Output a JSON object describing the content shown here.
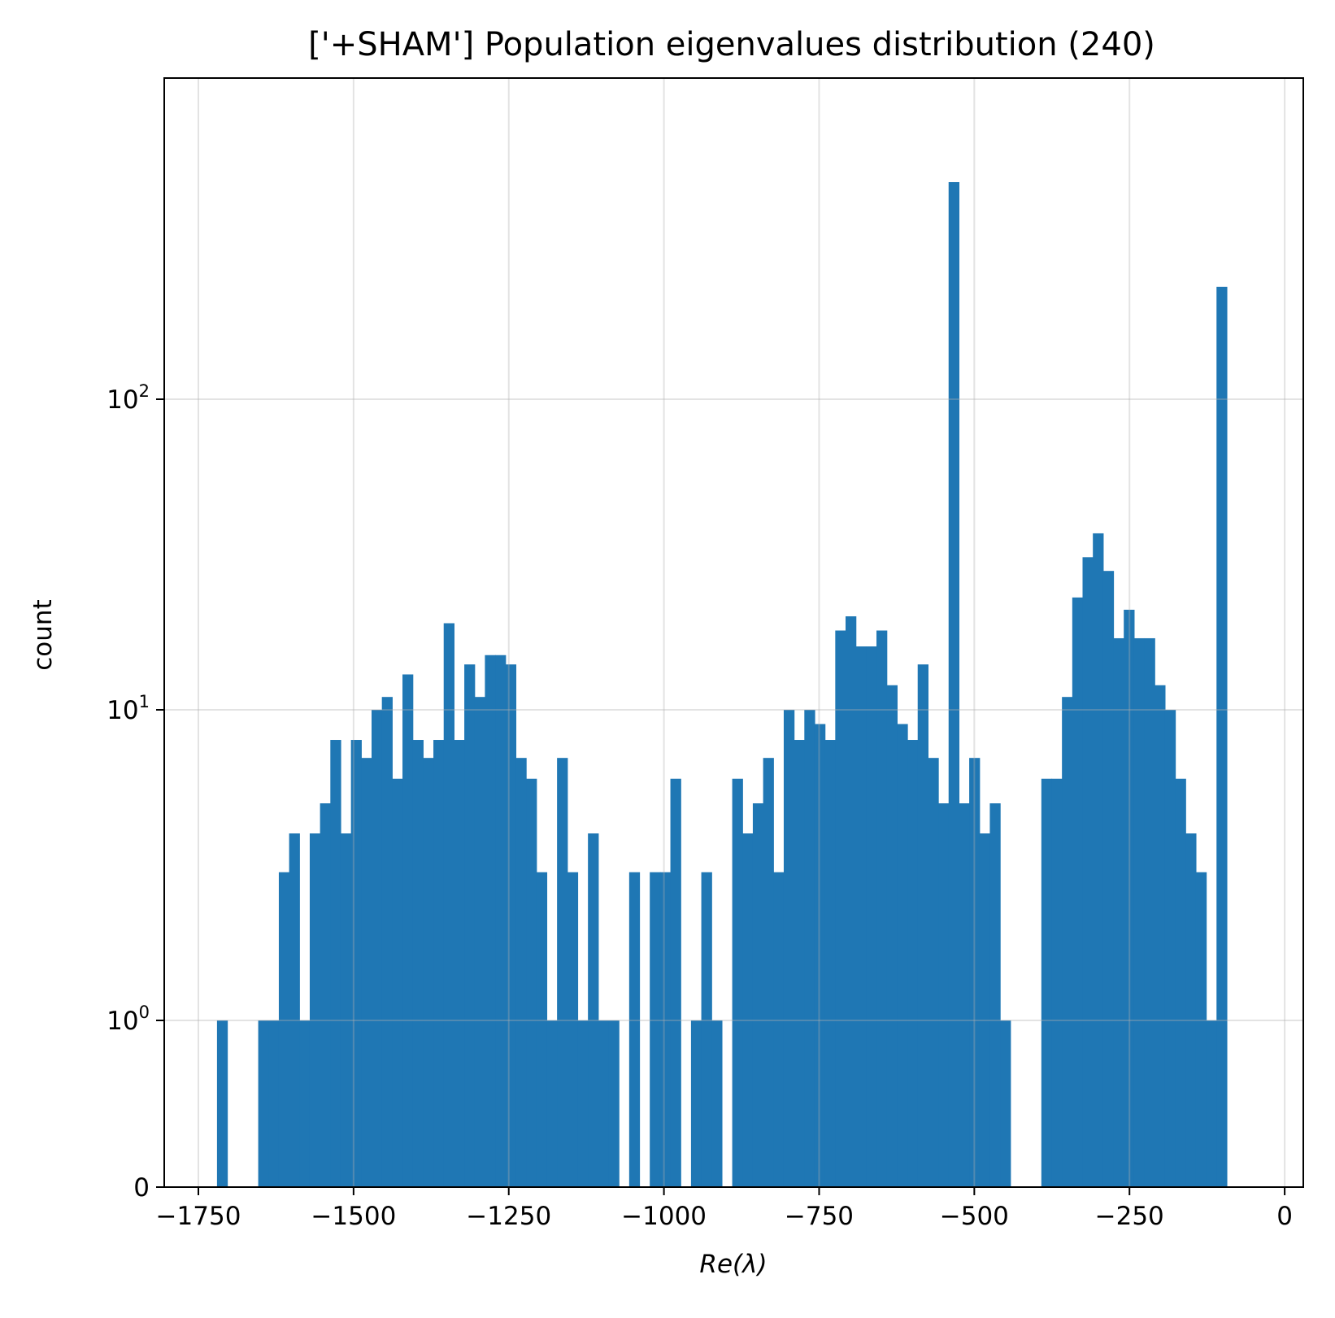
{
  "chart_data": {
    "type": "bar",
    "title": "['+SHAM'] Population eigenvalues distribution (240)",
    "xlabel": "Re(λ)",
    "ylabel": "count",
    "yscale": "symlog",
    "grid": true,
    "color": "#1f77b4",
    "xlim": [
      -1805,
      30
    ],
    "x_ticks": [
      {
        "value": -1750,
        "label": "−1750"
      },
      {
        "value": -1500,
        "label": "−1500"
      },
      {
        "value": -1250,
        "label": "−1250"
      },
      {
        "value": -1000,
        "label": "−1000"
      },
      {
        "value": -750,
        "label": "−750"
      },
      {
        "value": -500,
        "label": "−500"
      },
      {
        "value": -250,
        "label": "−250"
      },
      {
        "value": 0,
        "label": "0"
      }
    ],
    "y_ticks": [
      {
        "value": 0,
        "base": "0",
        "exp": ""
      },
      {
        "value": 1,
        "base": "10",
        "exp": "0"
      },
      {
        "value": 10,
        "base": "10",
        "exp": "1"
      },
      {
        "value": 100,
        "base": "10",
        "exp": "2"
      }
    ],
    "bin_start": -1720,
    "bin_width": 16.6,
    "values": [
      1,
      0,
      0,
      0,
      1,
      1,
      3,
      4,
      1,
      4,
      5,
      8,
      4,
      8,
      7,
      10,
      11,
      6,
      13,
      8,
      7,
      8,
      19,
      8,
      14,
      11,
      15,
      15,
      14,
      7,
      6,
      3,
      1,
      7,
      3,
      1,
      4,
      1,
      1,
      0,
      3,
      0,
      3,
      3,
      6,
      0,
      1,
      3,
      1,
      0,
      6,
      4,
      5,
      7,
      3,
      10,
      8,
      10,
      9,
      8,
      18,
      20,
      16,
      16,
      18,
      12,
      9,
      8,
      14,
      7,
      5,
      500,
      5,
      7,
      4,
      5,
      1,
      0,
      0,
      0,
      6,
      6,
      11,
      23,
      31,
      37,
      28,
      17,
      21,
      17,
      17,
      12,
      10,
      6,
      4,
      3,
      1,
      230
    ]
  }
}
